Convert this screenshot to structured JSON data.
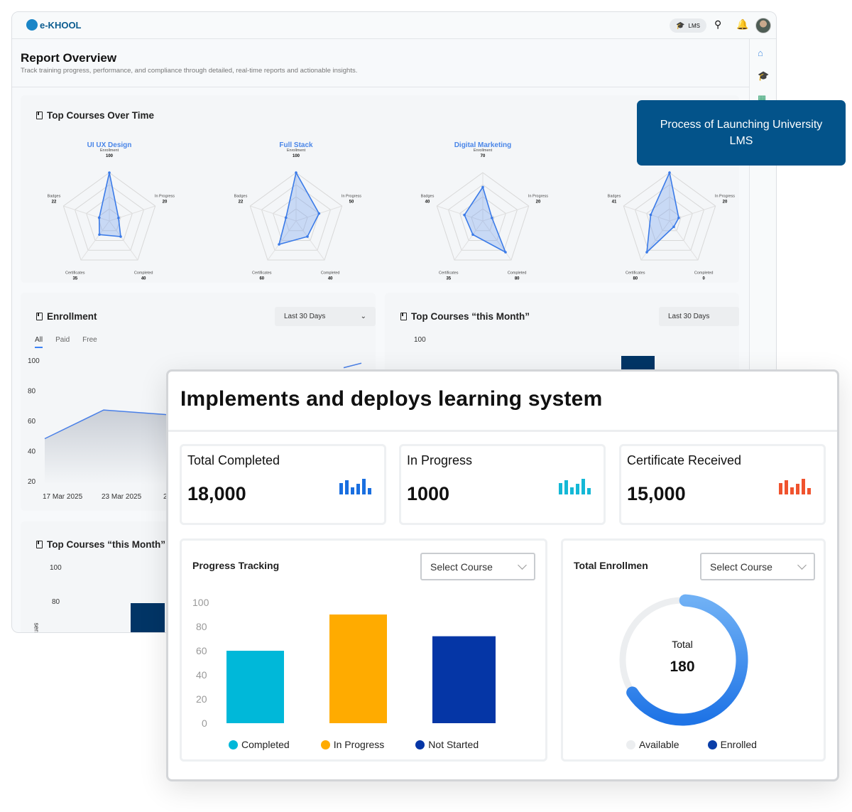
{
  "app": {
    "logo": "e-KHOOL",
    "lms_label": "LMS",
    "icons": [
      "search-icon",
      "bell-icon",
      "avatar",
      "home-icon",
      "graduation-cap-icon",
      "grid-icon"
    ]
  },
  "page": {
    "title": "Report Overview",
    "subtitle": "Track training progress, performance, and compliance through detailed, real-time reports and actionable insights."
  },
  "top_courses_over_time": {
    "title": "Top Courses Over Time",
    "axes": [
      "Enrollment",
      "In Progress",
      "Completed",
      "Certificates",
      "Badges"
    ],
    "chart_data": {
      "type": "radar",
      "range": [
        0,
        100
      ],
      "series": [
        {
          "name": "UI UX Design",
          "values": [
            100,
            20,
            40,
            35,
            22
          ]
        },
        {
          "name": "Full Stack",
          "values": [
            100,
            50,
            40,
            60,
            22
          ]
        },
        {
          "name": "Digital Marketing",
          "values": [
            70,
            20,
            80,
            35,
            40
          ]
        },
        {
          "name": "",
          "values": [
            100,
            20,
            0,
            80,
            41
          ]
        }
      ]
    },
    "color": "#3b7be8"
  },
  "enrollment": {
    "title": "Enrollment",
    "range_select": "Last 30 Days",
    "tabs": [
      "All",
      "Paid",
      "Free"
    ],
    "active_tab": "All",
    "chart_data": {
      "type": "area",
      "x": [
        "17 Mar 2025",
        "23 Mar 2025",
        "24 Mar 2025"
      ],
      "values": [
        48,
        67,
        64
      ],
      "yticks": [
        100,
        80,
        60,
        40,
        20
      ],
      "ylim": [
        20,
        100
      ]
    }
  },
  "top_courses_month": {
    "title": "Top Courses “this Month”",
    "range_select": "Last 30 Days",
    "yticks": [
      "100"
    ]
  },
  "top_courses_month_2": {
    "title": "Top Courses “this Month”",
    "yticks": [
      "100",
      "80"
    ],
    "ylabel_fragment": "sers"
  },
  "tooltip": {
    "text": "Process of Launching University LMS"
  },
  "front": {
    "title": "Implements and deploys learning system",
    "stats": [
      {
        "label": "Total Completed",
        "value": "18,000",
        "color": "#1a6fe0"
      },
      {
        "label": "In Progress",
        "value": "1000",
        "color": "#14b8d6"
      },
      {
        "label": "Certificate Received",
        "value": "15,000",
        "color": "#f0532e"
      }
    ],
    "progress": {
      "title": "Progress Tracking",
      "select": "Select Course",
      "chart_data": {
        "type": "bar",
        "categories": [
          "Completed",
          "In Progress",
          "Not Started"
        ],
        "values": [
          60,
          90,
          72
        ],
        "colors": [
          "#00b8d9",
          "#ffab00",
          "#0536a6"
        ],
        "yticks": [
          100,
          80,
          60,
          40,
          20,
          0
        ],
        "ylim": [
          0,
          100
        ]
      }
    },
    "enrollment": {
      "title": "Total Enrollmen",
      "select": "Select Course",
      "center_label": "Total",
      "center_value": "180",
      "chart_data": {
        "type": "donut",
        "enrolled_fraction": 0.65,
        "legend": [
          "Available",
          "Enrolled"
        ],
        "colors": [
          "#eceef0",
          "#0a3ea8"
        ]
      }
    }
  }
}
